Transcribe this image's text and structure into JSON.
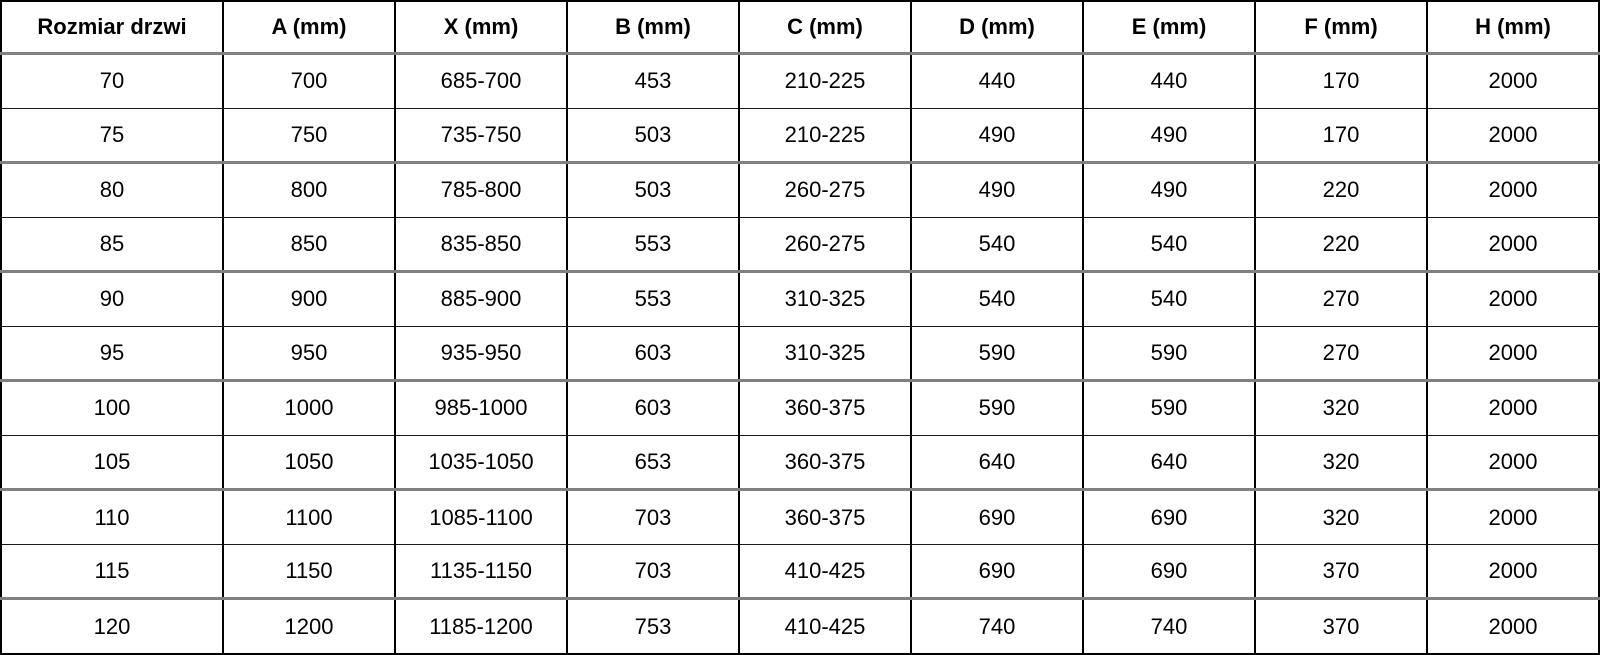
{
  "table": {
    "name": "door-dimensions-table",
    "columns": [
      "Rozmiar drzwi",
      "A (mm)",
      "X (mm)",
      "B (mm)",
      "C (mm)",
      "D (mm)",
      "E (mm)",
      "F (mm)",
      "H (mm)"
    ],
    "rows": [
      [
        "70",
        "700",
        "685-700",
        "453",
        "210-225",
        "440",
        "440",
        "170",
        "2000"
      ],
      [
        "75",
        "750",
        "735-750",
        "503",
        "210-225",
        "490",
        "490",
        "170",
        "2000"
      ],
      [
        "80",
        "800",
        "785-800",
        "503",
        "260-275",
        "490",
        "490",
        "220",
        "2000"
      ],
      [
        "85",
        "850",
        "835-850",
        "553",
        "260-275",
        "540",
        "540",
        "220",
        "2000"
      ],
      [
        "90",
        "900",
        "885-900",
        "553",
        "310-325",
        "540",
        "540",
        "270",
        "2000"
      ],
      [
        "95",
        "950",
        "935-950",
        "603",
        "310-325",
        "590",
        "590",
        "270",
        "2000"
      ],
      [
        "100",
        "1000",
        "985-1000",
        "603",
        "360-375",
        "590",
        "590",
        "320",
        "2000"
      ],
      [
        "105",
        "1050",
        "1035-1050",
        "653",
        "360-375",
        "640",
        "640",
        "320",
        "2000"
      ],
      [
        "110",
        "1100",
        "1085-1100",
        "703",
        "360-375",
        "690",
        "690",
        "320",
        "2000"
      ],
      [
        "115",
        "1150",
        "1135-1150",
        "703",
        "410-425",
        "690",
        "690",
        "370",
        "2000"
      ],
      [
        "120",
        "1200",
        "1185-1200",
        "753",
        "410-425",
        "740",
        "740",
        "370",
        "2000"
      ]
    ]
  },
  "colors": {
    "border_black": "#000000",
    "separator_gray": "#808080",
    "text": "#000000",
    "background": "#ffffff"
  }
}
